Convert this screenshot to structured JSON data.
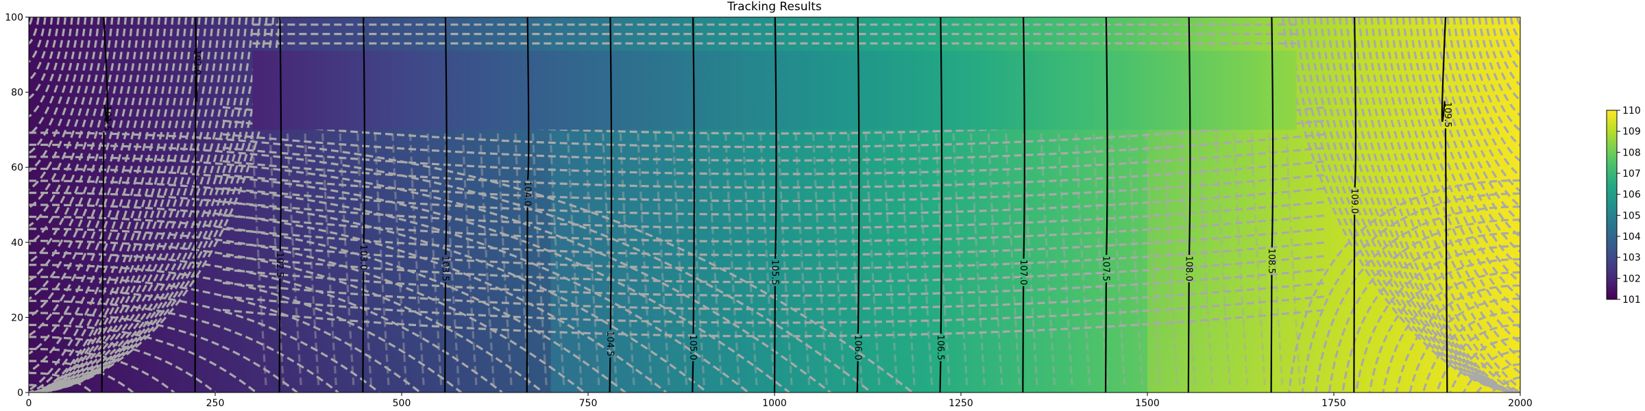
{
  "chart_data": {
    "type": "heatmap",
    "title": "Tracking Results",
    "xlabel": "",
    "ylabel": "",
    "xlim": [
      0,
      2000
    ],
    "ylim": [
      0,
      100
    ],
    "x_ticks": [
      "0",
      "250",
      "500",
      "750",
      "1000",
      "1250",
      "1500",
      "1750",
      "2000"
    ],
    "y_ticks": [
      "0",
      "20",
      "40",
      "60",
      "80",
      "100"
    ],
    "colormap": "viridis",
    "colorbar": {
      "range": [
        101,
        110
      ],
      "ticks": [
        "101",
        "102",
        "103",
        "104",
        "105",
        "106",
        "107",
        "108",
        "109",
        "110"
      ]
    },
    "field_range": [
      101.3,
      109.9
    ],
    "inactive_zone": {
      "x": [
        300,
        1700
      ],
      "y": [
        70,
        91
      ],
      "value_range": [
        101.9,
        108.5
      ]
    },
    "contour_lines": [
      {
        "x": 98,
        "label": "101.5",
        "label_y": 73,
        "label_x": 105
      },
      {
        "x": 223,
        "label": "102.0",
        "label_y": 88,
        "label_x": 225
      },
      {
        "x": 336,
        "label": "102.5",
        "label_y": 34,
        "label_x": 336
      },
      {
        "x": 448,
        "label": "103.0",
        "label_y": 36,
        "label_x": 448
      },
      {
        "x": 558,
        "label": "103.5",
        "label_y": 33,
        "label_x": 558
      },
      {
        "x": 668,
        "label": "104.0",
        "label_y": 53,
        "label_x": 668
      },
      {
        "x": 779,
        "label": "104.5",
        "label_y": 13,
        "label_x": 779
      },
      {
        "x": 890,
        "label": "105.0",
        "label_y": 12,
        "label_x": 890
      },
      {
        "x": 1000,
        "label": "105.5",
        "label_y": 32,
        "label_x": 1000
      },
      {
        "x": 1111,
        "label": "106.0",
        "label_y": 12,
        "label_x": 1111
      },
      {
        "x": 1222,
        "label": "106.5",
        "label_y": 12,
        "label_x": 1222
      },
      {
        "x": 1333,
        "label": "107.0",
        "label_y": 32,
        "label_x": 1333
      },
      {
        "x": 1444,
        "label": "107.5",
        "label_y": 33,
        "label_x": 1444
      },
      {
        "x": 1555,
        "label": "108.0",
        "label_y": 33,
        "label_x": 1555
      },
      {
        "x": 1666,
        "label": "108.5",
        "label_y": 35,
        "label_x": 1666
      },
      {
        "x": 1777,
        "label": "109.0",
        "label_y": 51,
        "label_x": 1777
      },
      {
        "x": 1902,
        "label": "109.5",
        "label_y": 74,
        "label_x": 1902
      }
    ],
    "pathline_color": "#a9a9a9",
    "grid": false,
    "legend": "colorbar-right"
  }
}
